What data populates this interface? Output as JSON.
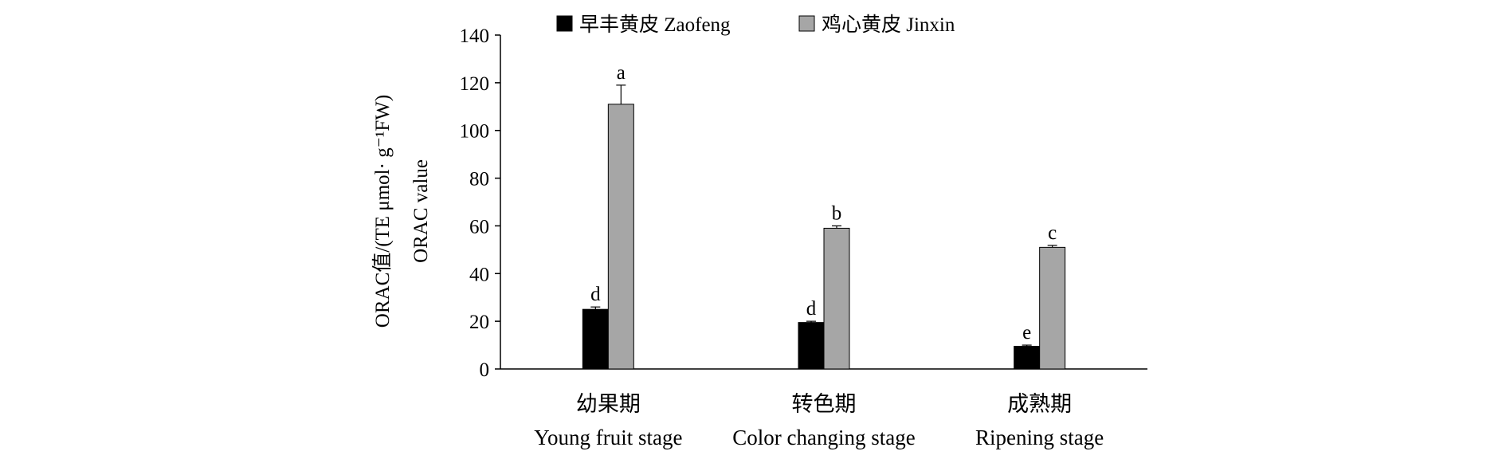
{
  "chart_data": {
    "type": "bar",
    "ylabel_line1": "ORAC值/(TE μmol· g⁻¹FW)",
    "ylabel_line2": "ORAC  value",
    "ylim": [
      0,
      140
    ],
    "yticks": [
      0,
      20,
      40,
      60,
      80,
      100,
      120,
      140
    ],
    "grid": false,
    "legend_position": "top",
    "categories": [
      {
        "cn": "幼果期",
        "en": "Young fruit stage"
      },
      {
        "cn": "转色期",
        "en": "Color changing stage"
      },
      {
        "cn": "成熟期",
        "en": "Ripening stage"
      }
    ],
    "series": [
      {
        "name": "早丰黄皮 Zaofeng",
        "color": "#000000",
        "values": [
          25,
          19.5,
          9.5
        ],
        "errors": [
          1,
          0.5,
          0.5
        ],
        "labels": [
          "d",
          "d",
          "e"
        ]
      },
      {
        "name": "鸡心黄皮 Jinxin",
        "color": "#a6a6a6",
        "values": [
          111,
          59,
          51
        ],
        "errors": [
          8,
          1,
          0.8
        ],
        "labels": [
          "a",
          "b",
          "c"
        ]
      }
    ]
  }
}
